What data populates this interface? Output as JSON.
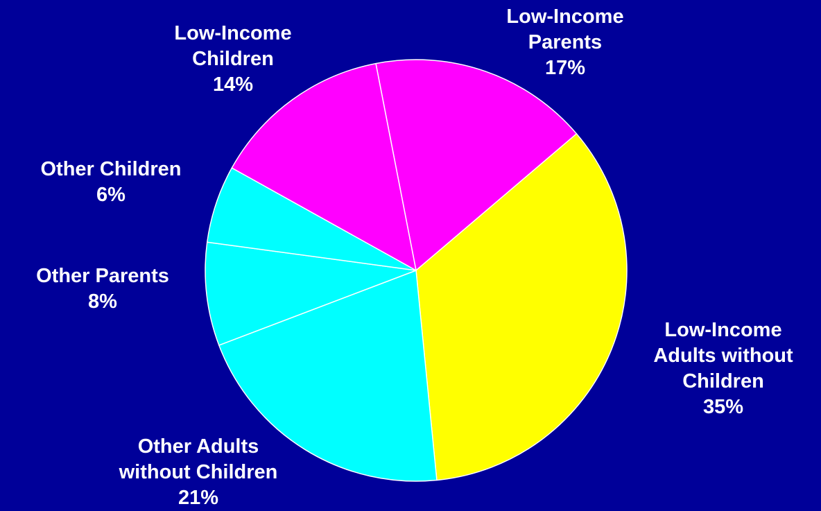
{
  "chart_data": {
    "type": "pie",
    "slices": [
      {
        "label_lines": [
          "Low-Income",
          "Parents"
        ],
        "pct_text": "17%",
        "value": 17,
        "color": "#ff00ff"
      },
      {
        "label_lines": [
          "Low-Income",
          "Adults without",
          "Children"
        ],
        "pct_text": "35%",
        "value": 35,
        "color": "#ffff00"
      },
      {
        "label_lines": [
          "Other Adults",
          "without Children"
        ],
        "pct_text": "21%",
        "value": 21,
        "color": "#00ffff"
      },
      {
        "label_lines": [
          "Other Parents"
        ],
        "pct_text": "8%",
        "value": 8,
        "color": "#00ffff"
      },
      {
        "label_lines": [
          "Other Children"
        ],
        "pct_text": "6%",
        "value": 6,
        "color": "#00ffff"
      },
      {
        "label_lines": [
          "Low-Income",
          "Children"
        ],
        "pct_text": "14%",
        "value": 14,
        "color": "#ff00ff"
      }
    ],
    "background": "#000099",
    "label_color": "#ffffff",
    "legend": "none"
  }
}
